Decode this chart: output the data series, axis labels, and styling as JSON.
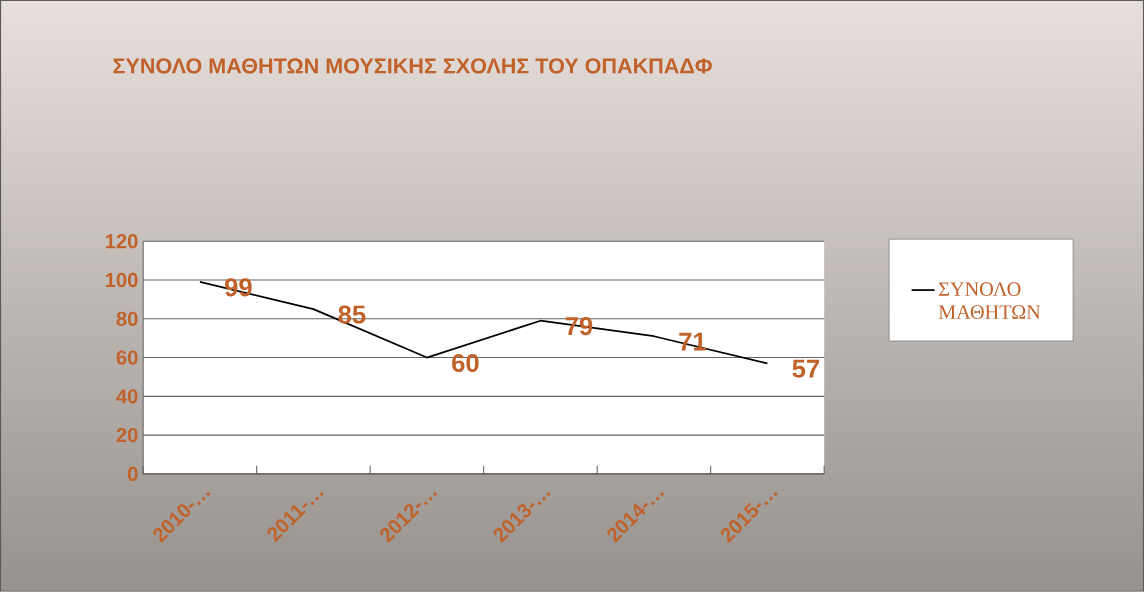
{
  "chart_data": {
    "type": "line",
    "title": "ΣΥΝΟΛΟ ΜΑΘΗΤΩΝ ΜΟΥΣΙΚΗΣ ΣΧΟΛΗΣ ΤΟΥ ΟΠΑΚΠΑΔΦ",
    "categories": [
      "2010-…",
      "2011-…",
      "2012-…",
      "2013-…",
      "2014-…",
      "2015-…"
    ],
    "series": [
      {
        "name": "ΣΥΝΟΛΟ ΜΑΘΗΤΩΝ",
        "color": "#000000",
        "values": [
          99,
          85,
          60,
          79,
          71,
          57
        ]
      }
    ],
    "ylim": [
      0,
      120
    ],
    "yticks": [
      0,
      20,
      40,
      60,
      80,
      100,
      120
    ],
    "grid": "y",
    "legend": "right",
    "data_labels": true,
    "marker": "none",
    "line_style": "solid"
  }
}
